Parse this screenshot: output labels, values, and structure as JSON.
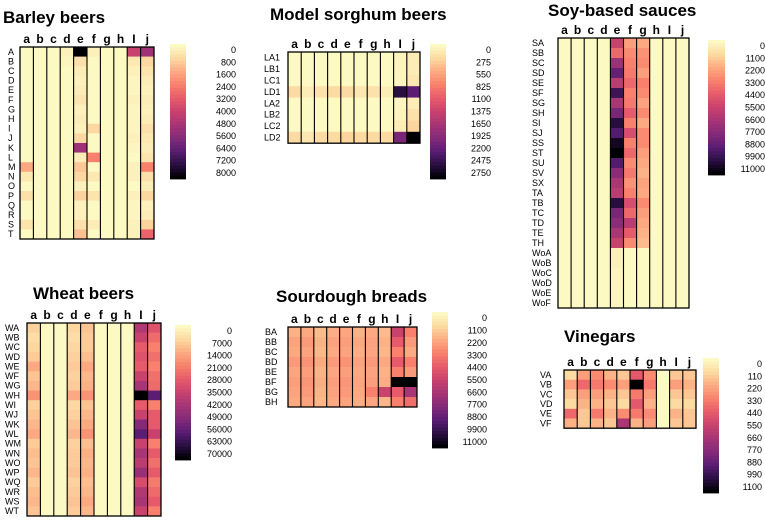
{
  "chart_data": [
    {
      "type": "heatmap",
      "title": "Barley beers",
      "columns": [
        "a",
        "b",
        "c",
        "d",
        "e",
        "f",
        "g",
        "h",
        "I",
        "j"
      ],
      "rows": [
        "A",
        "B",
        "C",
        "D",
        "E",
        "F",
        "G",
        "H",
        "I",
        "J",
        "K",
        "L",
        "M",
        "N",
        "O",
        "P",
        "Q",
        "R",
        "S",
        "T"
      ],
      "scale_ticks": [
        "0",
        "800",
        "1600",
        "2400",
        "3200",
        "4000",
        "4800",
        "5600",
        "6400",
        "7200",
        "8000"
      ],
      "scale_max": 8000,
      "values": [
        [
          0,
          0,
          0,
          200,
          8000,
          200,
          0,
          0,
          4000,
          5000
        ],
        [
          0,
          0,
          0,
          100,
          600,
          0,
          0,
          0,
          400,
          800
        ],
        [
          0,
          0,
          0,
          0,
          300,
          0,
          0,
          0,
          200,
          500
        ],
        [
          0,
          0,
          0,
          0,
          200,
          0,
          0,
          0,
          100,
          300
        ],
        [
          0,
          0,
          0,
          0,
          300,
          0,
          0,
          0,
          100,
          200
        ],
        [
          0,
          0,
          0,
          0,
          500,
          0,
          0,
          0,
          200,
          300
        ],
        [
          0,
          0,
          0,
          0,
          200,
          0,
          0,
          0,
          100,
          200
        ],
        [
          0,
          0,
          0,
          0,
          300,
          0,
          0,
          0,
          100,
          300
        ],
        [
          0,
          0,
          0,
          0,
          200,
          800,
          0,
          0,
          100,
          600
        ],
        [
          0,
          0,
          0,
          0,
          800,
          0,
          0,
          0,
          200,
          400
        ],
        [
          0,
          0,
          0,
          0,
          5000,
          0,
          0,
          0,
          100,
          300
        ],
        [
          0,
          0,
          0,
          0,
          300,
          2400,
          0,
          0,
          0,
          500
        ],
        [
          1600,
          0,
          0,
          0,
          1100,
          0,
          0,
          0,
          200,
          2400
        ],
        [
          400,
          0,
          0,
          0,
          800,
          400,
          0,
          0,
          200,
          600
        ],
        [
          0,
          0,
          0,
          0,
          200,
          0,
          0,
          0,
          0,
          300
        ],
        [
          600,
          0,
          0,
          0,
          900,
          500,
          0,
          0,
          200,
          800
        ],
        [
          0,
          0,
          0,
          0,
          200,
          0,
          0,
          0,
          100,
          200
        ],
        [
          0,
          0,
          0,
          0,
          200,
          0,
          0,
          0,
          100,
          300
        ],
        [
          500,
          0,
          0,
          0,
          600,
          300,
          0,
          0,
          200,
          900
        ],
        [
          0,
          0,
          0,
          0,
          1200,
          0,
          0,
          0,
          200,
          3000
        ]
      ]
    },
    {
      "type": "heatmap",
      "title": "Model sorghum beers",
      "columns": [
        "a",
        "b",
        "c",
        "d",
        "e",
        "f",
        "g",
        "h",
        "I",
        "j"
      ],
      "rows": [
        "LA1",
        "LB1",
        "LC1",
        "LD1",
        "LA2",
        "LB2",
        "LC2",
        "LD2"
      ],
      "scale_ticks": [
        "0",
        "275",
        "550",
        "825",
        "1100",
        "1375",
        "1650",
        "1925",
        "2200",
        "2475",
        "2750"
      ],
      "scale_max": 2750,
      "values": [
        [
          0,
          0,
          0,
          0,
          0,
          0,
          0,
          0,
          60,
          120
        ],
        [
          0,
          0,
          0,
          0,
          0,
          0,
          0,
          0,
          50,
          100
        ],
        [
          0,
          0,
          0,
          0,
          0,
          0,
          0,
          0,
          40,
          150
        ],
        [
          250,
          100,
          200,
          250,
          250,
          150,
          200,
          100,
          2500,
          2200
        ],
        [
          0,
          0,
          0,
          0,
          0,
          0,
          0,
          0,
          30,
          100
        ],
        [
          0,
          0,
          0,
          0,
          0,
          0,
          0,
          0,
          50,
          200
        ],
        [
          0,
          0,
          0,
          0,
          0,
          0,
          0,
          0,
          100,
          300
        ],
        [
          250,
          150,
          250,
          250,
          300,
          250,
          250,
          250,
          2000,
          2750
        ]
      ]
    },
    {
      "type": "heatmap",
      "title": "Soy-based sauces",
      "columns": [
        "a",
        "b",
        "c",
        "d",
        "e",
        "f",
        "g",
        "h",
        "I",
        "j"
      ],
      "rows": [
        "SA",
        "SB",
        "SC",
        "SD",
        "SE",
        "SF",
        "SG",
        "SH",
        "SI",
        "SJ",
        "SS",
        "ST",
        "SU",
        "SV",
        "SX",
        "TA",
        "TB",
        "TC",
        "TD",
        "TE",
        "TH",
        "WoA",
        "WoB",
        "WoC",
        "WoD",
        "WoE",
        "WoF"
      ],
      "scale_ticks": [
        "0",
        "1100",
        "2200",
        "3300",
        "4400",
        "5500",
        "6600",
        "7700",
        "8800",
        "9900",
        "11000"
      ],
      "scale_max": 11000,
      "values": [
        [
          0,
          0,
          0,
          0,
          5500,
          2500,
          2200,
          0,
          0,
          0
        ],
        [
          0,
          0,
          0,
          0,
          4000,
          3000,
          2800,
          0,
          0,
          0
        ],
        [
          0,
          0,
          0,
          0,
          7000,
          3300,
          3000,
          0,
          0,
          0
        ],
        [
          0,
          0,
          0,
          0,
          8500,
          3500,
          2500,
          0,
          0,
          0
        ],
        [
          0,
          0,
          0,
          0,
          6000,
          4000,
          3300,
          0,
          0,
          0
        ],
        [
          0,
          0,
          0,
          0,
          9500,
          3300,
          3000,
          0,
          0,
          0
        ],
        [
          0,
          0,
          0,
          0,
          6500,
          3500,
          2400,
          0,
          0,
          0
        ],
        [
          0,
          0,
          0,
          0,
          8000,
          4400,
          3000,
          0,
          0,
          0
        ],
        [
          0,
          0,
          0,
          0,
          10000,
          3300,
          2200,
          0,
          0,
          0
        ],
        [
          0,
          0,
          0,
          0,
          9000,
          5000,
          3000,
          0,
          0,
          0
        ],
        [
          0,
          0,
          0,
          0,
          10500,
          3300,
          3000,
          0,
          0,
          0
        ],
        [
          0,
          0,
          0,
          0,
          11000,
          4000,
          2500,
          0,
          0,
          0
        ],
        [
          0,
          0,
          0,
          0,
          9000,
          3000,
          2200,
          0,
          0,
          0
        ],
        [
          0,
          0,
          0,
          0,
          7500,
          3500,
          2000,
          0,
          0,
          0
        ],
        [
          0,
          0,
          0,
          0,
          6500,
          2800,
          2400,
          0,
          0,
          0
        ],
        [
          0,
          0,
          0,
          0,
          6000,
          3300,
          2200,
          0,
          0,
          0
        ],
        [
          0,
          0,
          0,
          0,
          10000,
          5000,
          3000,
          0,
          0,
          0
        ],
        [
          0,
          0,
          0,
          0,
          8000,
          4000,
          2500,
          0,
          0,
          0
        ],
        [
          0,
          0,
          0,
          0,
          7500,
          6000,
          2200,
          0,
          0,
          0
        ],
        [
          0,
          0,
          0,
          0,
          6500,
          4400,
          2000,
          0,
          0,
          0
        ],
        [
          0,
          0,
          0,
          0,
          5500,
          3000,
          1800,
          0,
          0,
          0
        ],
        [
          0,
          0,
          0,
          0,
          300,
          0,
          0,
          0,
          0,
          0
        ],
        [
          0,
          0,
          0,
          0,
          300,
          0,
          0,
          0,
          0,
          0
        ],
        [
          0,
          0,
          0,
          0,
          200,
          0,
          0,
          0,
          0,
          0
        ],
        [
          0,
          0,
          0,
          0,
          200,
          0,
          0,
          0,
          0,
          0
        ],
        [
          0,
          0,
          0,
          0,
          150,
          0,
          0,
          0,
          0,
          0
        ],
        [
          0,
          0,
          0,
          0,
          150,
          0,
          0,
          0,
          0,
          0
        ]
      ]
    },
    {
      "type": "heatmap",
      "title": "Wheat beers",
      "columns": [
        "a",
        "b",
        "c",
        "d",
        "e",
        "f",
        "g",
        "h",
        "I",
        "j"
      ],
      "rows": [
        "WA",
        "WB",
        "WC",
        "WD",
        "WE",
        "WF",
        "WG",
        "WH",
        "WI",
        "WJ",
        "WK",
        "WL",
        "WM",
        "WN",
        "WO",
        "WP",
        "WQ",
        "WR",
        "WS",
        "WT"
      ],
      "scale_ticks": [
        "0",
        "7000",
        "14000",
        "21000",
        "28000",
        "35000",
        "42000",
        "49000",
        "56000",
        "63000",
        "70000"
      ],
      "scale_max": 70000,
      "values": [
        [
          8000,
          0,
          0,
          7000,
          10000,
          0,
          0,
          0,
          40000,
          30000
        ],
        [
          6000,
          0,
          0,
          6000,
          9000,
          0,
          0,
          0,
          35000,
          25000
        ],
        [
          7000,
          0,
          0,
          7000,
          9000,
          0,
          0,
          0,
          28000,
          21000
        ],
        [
          9000,
          0,
          0,
          8000,
          11000,
          0,
          0,
          0,
          30000,
          24000
        ],
        [
          14000,
          0,
          0,
          9000,
          14000,
          0,
          0,
          0,
          28000,
          21000
        ],
        [
          10000,
          0,
          0,
          8000,
          12000,
          0,
          0,
          0,
          35000,
          24000
        ],
        [
          12000,
          0,
          0,
          9000,
          13000,
          0,
          0,
          0,
          42000,
          25000
        ],
        [
          18000,
          0,
          0,
          14000,
          18000,
          0,
          0,
          0,
          70000,
          56000
        ],
        [
          8000,
          0,
          0,
          7000,
          10000,
          0,
          0,
          0,
          28000,
          21000
        ],
        [
          10000,
          0,
          0,
          8000,
          12000,
          0,
          0,
          0,
          35000,
          28000
        ],
        [
          12000,
          0,
          0,
          10000,
          14000,
          0,
          0,
          0,
          49000,
          28000
        ],
        [
          14000,
          0,
          0,
          12000,
          18000,
          0,
          0,
          0,
          56000,
          35000
        ],
        [
          9000,
          0,
          0,
          8000,
          11000,
          0,
          0,
          0,
          35000,
          21000
        ],
        [
          11000,
          0,
          0,
          9000,
          13000,
          0,
          0,
          0,
          42000,
          28000
        ],
        [
          10000,
          0,
          0,
          9000,
          12000,
          0,
          0,
          0,
          38000,
          24000
        ],
        [
          12000,
          0,
          0,
          10000,
          13000,
          0,
          0,
          0,
          45000,
          28000
        ],
        [
          9000,
          0,
          0,
          8000,
          11000,
          0,
          0,
          0,
          32000,
          22000
        ],
        [
          11000,
          0,
          0,
          9000,
          12000,
          0,
          0,
          0,
          40000,
          25000
        ],
        [
          12000,
          0,
          0,
          10000,
          14000,
          0,
          0,
          0,
          42000,
          28000
        ],
        [
          10000,
          0,
          0,
          9000,
          12000,
          0,
          0,
          0,
          35000,
          21000
        ]
      ]
    },
    {
      "type": "heatmap",
      "title": "Sourdough breads",
      "columns": [
        "a",
        "b",
        "c",
        "d",
        "e",
        "f",
        "g",
        "h",
        "I",
        "j"
      ],
      "rows": [
        "BA",
        "BB",
        "BC",
        "BD",
        "BE",
        "BF",
        "BG",
        "BH"
      ],
      "scale_ticks": [
        "0",
        "1100",
        "2200",
        "3300",
        "4400",
        "5500",
        "6600",
        "7700",
        "8800",
        "9900",
        "11000"
      ],
      "scale_max": 11000,
      "values": [
        [
          2000,
          2200,
          1800,
          2100,
          2300,
          2000,
          2200,
          1800,
          5500,
          3300
        ],
        [
          2400,
          2600,
          2000,
          2400,
          2500,
          2200,
          2400,
          2000,
          4400,
          2600
        ],
        [
          2200,
          2400,
          1900,
          2200,
          2400,
          2100,
          2300,
          1900,
          3300,
          2200
        ],
        [
          2600,
          2800,
          2200,
          2600,
          2800,
          2400,
          2600,
          2200,
          4400,
          3300
        ],
        [
          2300,
          2500,
          2000,
          2300,
          2500,
          2200,
          2400,
          2000,
          3300,
          2600
        ],
        [
          2500,
          2700,
          2100,
          2500,
          2700,
          2300,
          2500,
          2100,
          11000,
          11000
        ],
        [
          2400,
          2600,
          2000,
          2400,
          2600,
          2200,
          3300,
          5500,
          4400,
          6600
        ],
        [
          2200,
          2400,
          1900,
          2200,
          2400,
          2100,
          2300,
          1900,
          3300,
          3800
        ]
      ]
    },
    {
      "type": "heatmap",
      "title": "Vinegars",
      "columns": [
        "a",
        "b",
        "c",
        "d",
        "e",
        "f",
        "g",
        "h",
        "I",
        "j"
      ],
      "rows": [
        "VA",
        "VB",
        "VC",
        "VD",
        "VE",
        "VF"
      ],
      "scale_ticks": [
        "0",
        "110",
        "220",
        "330",
        "440",
        "550",
        "660",
        "770",
        "880",
        "990",
        "1100"
      ],
      "scale_max": 1100,
      "values": [
        [
          100,
          250,
          300,
          200,
          150,
          450,
          300,
          0,
          150,
          150
        ],
        [
          250,
          400,
          350,
          300,
          250,
          1100,
          350,
          0,
          250,
          200
        ],
        [
          150,
          250,
          250,
          200,
          150,
          350,
          250,
          0,
          150,
          150
        ],
        [
          100,
          200,
          200,
          150,
          100,
          450,
          200,
          0,
          100,
          100
        ],
        [
          400,
          150,
          350,
          200,
          300,
          350,
          300,
          0,
          200,
          150
        ],
        [
          200,
          150,
          200,
          150,
          650,
          200,
          250,
          0,
          150,
          150
        ]
      ]
    }
  ]
}
